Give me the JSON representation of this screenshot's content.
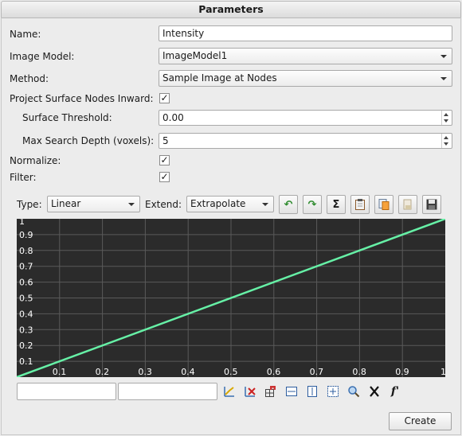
{
  "panel": {
    "title": "Parameters"
  },
  "form": {
    "name_label": "Name:",
    "name_value": "Intensity",
    "image_model_label": "Image Model:",
    "image_model_value": "ImageModel1",
    "method_label": "Method:",
    "method_value": "Sample Image at Nodes",
    "project_label": "Project Surface Nodes Inward:",
    "project_checked": true,
    "surface_threshold_label": "Surface Threshold:",
    "surface_threshold_value": "0.00",
    "max_depth_label": "Max Search Depth (voxels):",
    "max_depth_value": "5",
    "normalize_label": "Normalize:",
    "normalize_checked": true,
    "filter_label": "Filter:",
    "filter_checked": true
  },
  "curve_toolbar": {
    "type_label": "Type:",
    "type_value": "Linear",
    "extend_label": "Extend:",
    "extend_value": "Extrapolate",
    "check_glyph": "✓",
    "undo_icon": "↶",
    "redo_icon": "↷",
    "sum_icon": "Σ",
    "fprime_label": "f'"
  },
  "chart_data": {
    "type": "line",
    "title": "",
    "xlabel": "",
    "ylabel": "",
    "xlim": [
      0,
      1
    ],
    "ylim": [
      0,
      1
    ],
    "grid": true,
    "x_ticks": [
      "0.1",
      "0.2",
      "0.3",
      "0.4",
      "0.5",
      "0.6",
      "0.7",
      "0.8",
      "0.9",
      "1"
    ],
    "y_ticks": [
      "0.1",
      "0.2",
      "0.3",
      "0.4",
      "0.5",
      "0.6",
      "0.7",
      "0.8",
      "0.9",
      "1"
    ],
    "series": [
      {
        "x": [
          0,
          1
        ],
        "y": [
          0,
          1
        ],
        "color": "#66f0a6"
      }
    ],
    "colors": {
      "background": "#2b2b2b",
      "grid": "#5a5a5a",
      "tick_text": "#ffffff",
      "line": "#66f0a6"
    }
  },
  "point_editor": {
    "x_value": "",
    "y_value": ""
  },
  "actions": {
    "create_label": "Create"
  }
}
